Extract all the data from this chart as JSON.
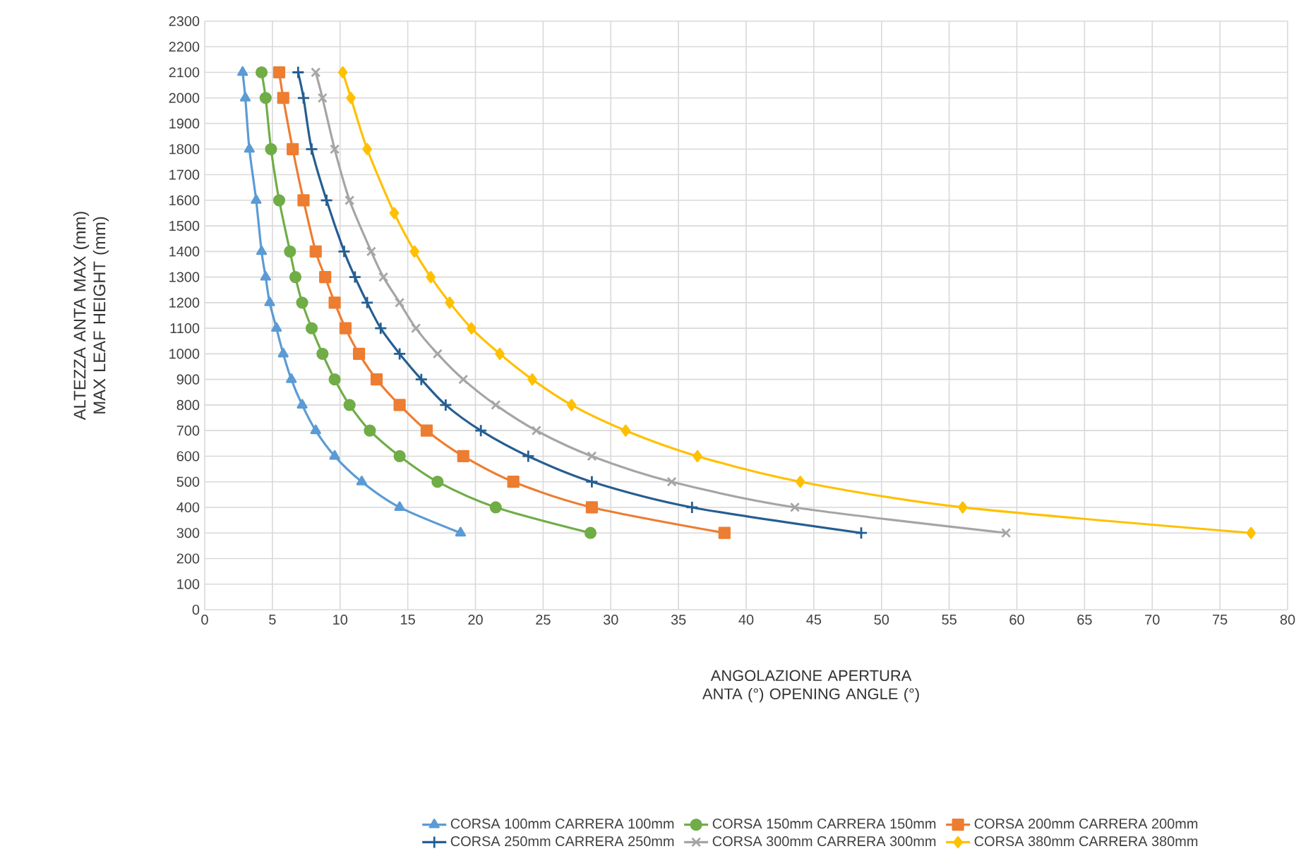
{
  "chart_data": {
    "type": "line",
    "xlabel": "ANGOLAZIONE APERTURA ANTA (°) OPENING ANGLE (°)",
    "ylabel": "ALTEZZA ANTA MAX (mm) MAX LEAF HEIGHT (mm)",
    "xlim": [
      0,
      80
    ],
    "xticks": [
      0,
      5,
      10,
      15,
      20,
      25,
      30,
      35,
      40,
      45,
      50,
      55,
      60,
      65,
      70,
      75,
      80
    ],
    "ylim": [
      0,
      2300
    ],
    "yticks": [
      0,
      100,
      200,
      300,
      400,
      500,
      600,
      700,
      800,
      900,
      1000,
      1100,
      1200,
      1300,
      1400,
      1500,
      1600,
      1700,
      1800,
      1900,
      2000,
      2100,
      2200,
      2300
    ],
    "grid": true,
    "legend": "bottom",
    "line_style": "solid",
    "series": [
      {
        "name": "CORSA 100mm CARRERA  100mm",
        "color": "#5b9bd5",
        "marker": "triangle",
        "x": [
          2.8,
          3.0,
          3.3,
          3.8,
          4.2,
          4.5,
          4.8,
          5.3,
          5.8,
          6.4,
          7.2,
          8.2,
          9.6,
          11.6,
          14.4,
          18.9
        ],
        "values": [
          2100,
          2000,
          1800,
          1600,
          1400,
          1300,
          1200,
          1100,
          1000,
          900,
          800,
          700,
          600,
          500,
          400,
          300
        ]
      },
      {
        "name": "CORSA 150mm CARRERA  150mm",
        "color": "#70ad47",
        "marker": "circle",
        "x": [
          4.2,
          4.5,
          4.9,
          5.5,
          6.3,
          6.7,
          7.2,
          7.9,
          8.7,
          9.6,
          10.7,
          12.2,
          14.4,
          17.2,
          21.5,
          28.5
        ],
        "values": [
          2100,
          2000,
          1800,
          1600,
          1400,
          1300,
          1200,
          1100,
          1000,
          900,
          800,
          700,
          600,
          500,
          400,
          300
        ]
      },
      {
        "name": "CORSA 200mm CARRERA  200mm",
        "color": "#ed7d31",
        "marker": "square",
        "x": [
          5.5,
          5.8,
          6.5,
          7.3,
          8.2,
          8.9,
          9.6,
          10.4,
          11.4,
          12.7,
          14.4,
          16.4,
          19.1,
          22.8,
          28.6,
          38.4
        ],
        "values": [
          2100,
          2000,
          1800,
          1600,
          1400,
          1300,
          1200,
          1100,
          1000,
          900,
          800,
          700,
          600,
          500,
          400,
          300
        ]
      },
      {
        "name": "CORSA 250mm CARRERA  250mm",
        "color": "#255e91",
        "marker": "plus",
        "x": [
          6.9,
          7.3,
          7.9,
          9.0,
          10.3,
          11.1,
          12.0,
          13.0,
          14.4,
          16.0,
          17.8,
          20.4,
          23.9,
          28.6,
          36.0,
          48.5
        ],
        "values": [
          2100,
          2000,
          1800,
          1600,
          1400,
          1300,
          1200,
          1100,
          1000,
          900,
          800,
          700,
          600,
          500,
          400,
          300
        ]
      },
      {
        "name": "CORSA 300mm CARRERA  300mm",
        "color": "#a5a5a5",
        "marker": "cross",
        "x": [
          8.2,
          8.7,
          9.6,
          10.7,
          12.3,
          13.2,
          14.4,
          15.6,
          17.2,
          19.1,
          21.5,
          24.5,
          28.6,
          34.5,
          43.6,
          59.2
        ],
        "values": [
          2100,
          2000,
          1800,
          1600,
          1400,
          1300,
          1200,
          1100,
          1000,
          900,
          800,
          700,
          600,
          500,
          400,
          300
        ]
      },
      {
        "name": "CORSA 380mm CARRERA  380mm",
        "color": "#ffc000",
        "marker": "diamond",
        "x": [
          10.2,
          10.8,
          12.0,
          14.0,
          15.5,
          16.7,
          18.1,
          19.7,
          21.8,
          24.2,
          27.1,
          31.1,
          36.4,
          44.0,
          56.0,
          77.3
        ],
        "values": [
          2100,
          2000,
          1800,
          1550,
          1400,
          1300,
          1200,
          1100,
          1000,
          900,
          800,
          700,
          600,
          500,
          400,
          300
        ]
      }
    ]
  }
}
